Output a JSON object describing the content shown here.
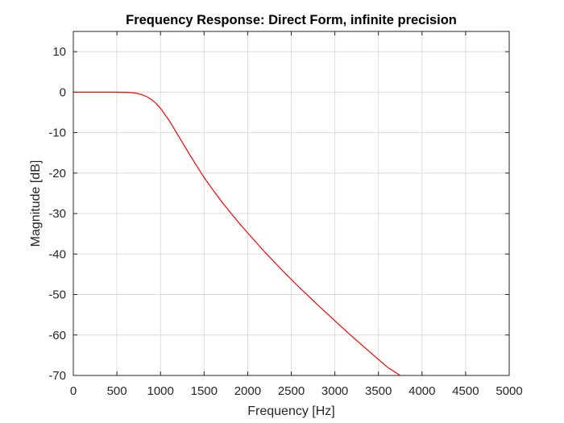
{
  "chart_data": {
    "type": "line",
    "title": "Frequency Response: Direct Form, infinite precision",
    "xlabel": "Frequency [Hz]",
    "ylabel": "Magnitude [dB]",
    "xlim": [
      0,
      5000
    ],
    "ylim": [
      -70,
      15
    ],
    "xticks": [
      0,
      500,
      1000,
      1500,
      2000,
      2500,
      3000,
      3500,
      4000,
      4500,
      5000
    ],
    "yticks": [
      10,
      0,
      -10,
      -20,
      -30,
      -40,
      -50,
      -60,
      -70
    ],
    "grid": true,
    "legend": "none",
    "series": [
      {
        "color": "#ff0000",
        "x": [
          0,
          100,
          200,
          300,
          400,
          500,
          600,
          650,
          700,
          750,
          800,
          850,
          900,
          950,
          1000,
          1100,
          1200,
          1300,
          1400,
          1500,
          1600,
          1700,
          1800,
          1900,
          2000,
          2200,
          2400,
          2600,
          2800,
          3000,
          3200,
          3400,
          3600,
          3750
        ],
        "y": [
          0,
          0,
          0,
          0,
          0,
          0,
          -0.05,
          -0.1,
          -0.2,
          -0.4,
          -0.75,
          -1.2,
          -1.9,
          -2.8,
          -4.0,
          -7.0,
          -10.6,
          -14.2,
          -17.7,
          -21.1,
          -24.1,
          -27.0,
          -29.7,
          -32.3,
          -34.8,
          -39.6,
          -44.1,
          -48.4,
          -52.5,
          -56.5,
          -60.4,
          -64.2,
          -67.9,
          -70.0
        ]
      }
    ]
  }
}
